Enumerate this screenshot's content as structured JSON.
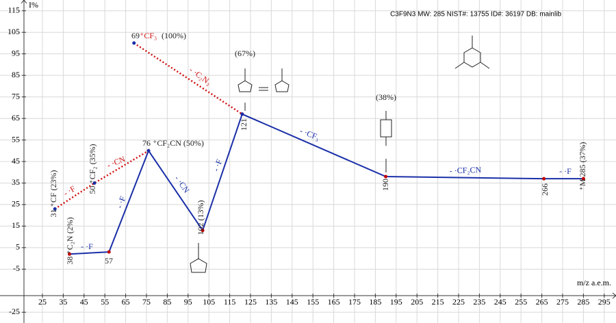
{
  "chart_data": {
    "type": "line",
    "title": "C3F9N3 MW: 285 NIST#: 13755 ID#: 36197 DB: mainlib",
    "x_label": "m/z a.e.m.",
    "y_label": "I%",
    "xlim": [
      5,
      300
    ],
    "ylim": [
      -30,
      120
    ],
    "xticks": [
      25,
      35,
      45,
      55,
      65,
      75,
      85,
      95,
      105,
      115,
      125,
      135,
      145,
      155,
      165,
      175,
      185,
      195,
      205,
      215,
      225,
      235,
      245,
      255,
      265,
      275,
      285,
      295
    ],
    "yticks": [
      -25,
      -5,
      5,
      15,
      25,
      35,
      45,
      55,
      65,
      75,
      85,
      95,
      105,
      115
    ],
    "grid": true,
    "marker_color": "#c00000",
    "series": [
      {
        "color": "#1a2fa8",
        "style": "solid",
        "x": [
          38,
          57,
          76,
          102,
          121,
          190,
          266,
          285
        ],
        "values": [
          2,
          3,
          50,
          13,
          67,
          38,
          37,
          37
        ]
      },
      {
        "color": "#d01010",
        "style": "dotted",
        "x": [
          31,
          50,
          76
        ],
        "values": [
          23,
          35,
          50
        ]
      },
      {
        "color": "#d01010",
        "style": "dotted",
        "x": [
          69,
          121
        ],
        "values": [
          100,
          67
        ]
      }
    ],
    "annotations": [
      {
        "text": "69",
        "color": "#222"
      },
      {
        "text": "⁺CF₃",
        "color": "#d01010"
      },
      {
        "text": "(100%)",
        "color": "#222"
      },
      {
        "text": "- ·C₂N₃",
        "color": "#d01010"
      },
      {
        "text": "(67%)",
        "color": "#222"
      },
      {
        "text": "121",
        "color": "#222"
      },
      {
        "text": "- ·CF₃",
        "color": "#1a2fa8"
      },
      {
        "text": "(38%)",
        "color": "#222"
      },
      {
        "text": "190",
        "color": "#222"
      },
      {
        "text": "- ·CF₂CN",
        "color": "#1a2fa8"
      },
      {
        "text": "266",
        "color": "#222"
      },
      {
        "text": "- ·F",
        "color": "#1a2fa8"
      },
      {
        "text": "⁺M 285 (37%)",
        "color": "#222"
      },
      {
        "text": "76 ⁺CF₂CN (50%)",
        "color": "#222"
      },
      {
        "text": "- ·CN",
        "color": "#1a2fa8"
      },
      {
        "text": "102 (13%)",
        "color": "#222"
      },
      {
        "text": "- ·F",
        "color": "#1a2fa8"
      },
      {
        "text": "- ·F",
        "color": "#1a2fa8"
      },
      {
        "text": "- ·F",
        "color": "#1a2fa8"
      },
      {
        "text": "57",
        "color": "#222"
      },
      {
        "text": "38 ⁺C₂N (2%)",
        "color": "#222"
      },
      {
        "text": "50 ⁺CF₂ (35%)",
        "color": "#222"
      },
      {
        "text": "31 ⁺CF (23%)",
        "color": "#222"
      },
      {
        "text": "- ·CN",
        "color": "#d01010"
      },
      {
        "text": "- ·F",
        "color": "#d01010"
      }
    ]
  }
}
